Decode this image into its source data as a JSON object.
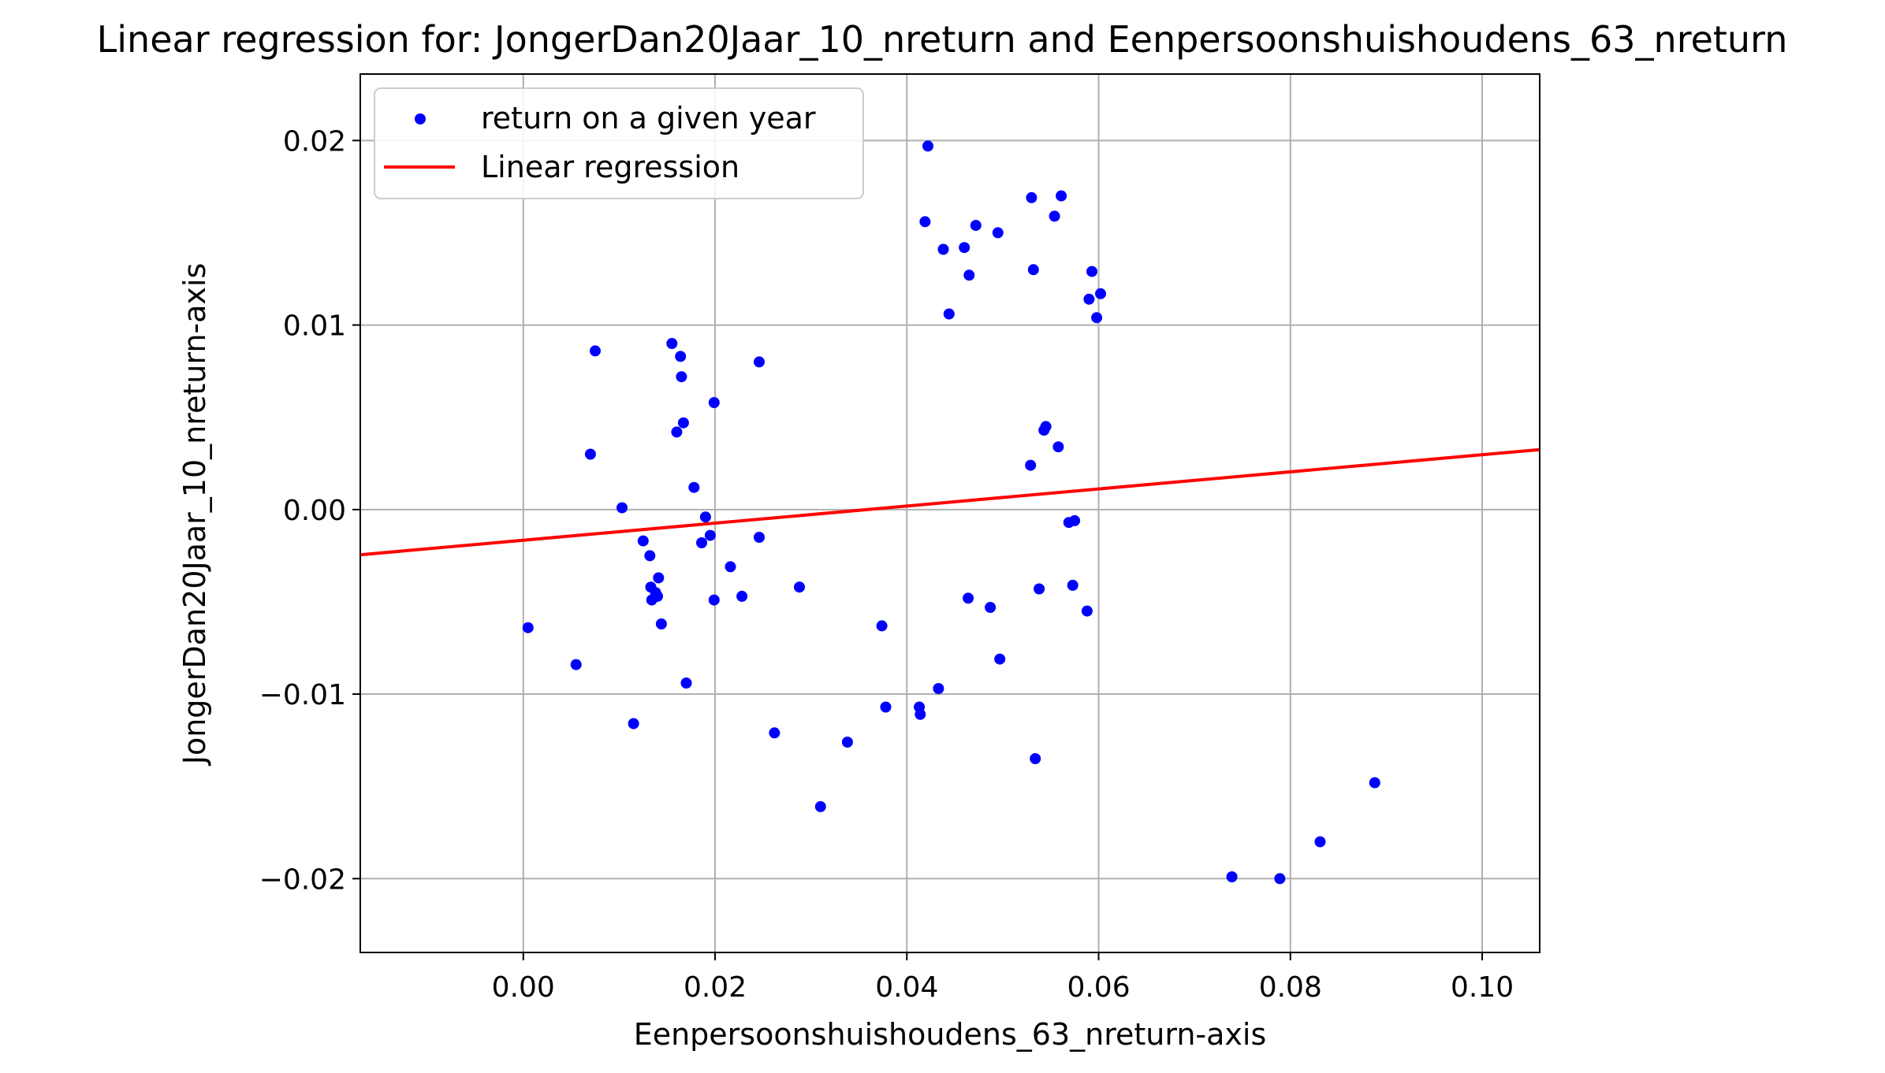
{
  "chart_data": {
    "type": "scatter",
    "title": "Linear regression for: JongerDan20Jaar_10_nreturn and Eenpersoonshuishoudens_63_nreturn",
    "xlabel": "Eenpersoonshuishoudens_63_nreturn-axis",
    "ylabel": "JongerDan20Jaar_10_nreturn-axis",
    "xlim": [
      -0.017,
      0.106
    ],
    "ylim": [
      -0.024,
      0.0236
    ],
    "xticks": [
      0.0,
      0.02,
      0.04,
      0.06,
      0.08,
      0.1
    ],
    "xtick_labels": [
      "0.00",
      "0.02",
      "0.04",
      "0.06",
      "0.08",
      "0.10"
    ],
    "yticks": [
      0.02,
      0.01,
      0.0,
      -0.01,
      -0.02
    ],
    "ytick_labels": [
      "0.02",
      "0.01",
      "0.00",
      "−0.01",
      "−0.02"
    ],
    "grid": true,
    "legend": {
      "position": "top-left",
      "entries": [
        {
          "label": "return on a given year",
          "kind": "marker",
          "color": "#0000ff"
        },
        {
          "label": "Linear regression",
          "kind": "line",
          "color": "#ff0000"
        }
      ]
    },
    "series": [
      {
        "name": "return on a given year",
        "kind": "scatter",
        "color": "#0000ff",
        "points": [
          [
            0.0005,
            -0.0064
          ],
          [
            0.0055,
            -0.0084
          ],
          [
            0.007,
            0.003
          ],
          [
            0.0075,
            0.0086
          ],
          [
            0.0103,
            0.0001
          ],
          [
            0.0115,
            -0.0116
          ],
          [
            0.0125,
            -0.0017
          ],
          [
            0.0132,
            -0.0025
          ],
          [
            0.0133,
            -0.0042
          ],
          [
            0.0134,
            -0.0049
          ],
          [
            0.0138,
            -0.0045
          ],
          [
            0.014,
            -0.0047
          ],
          [
            0.0141,
            -0.0037
          ],
          [
            0.0144,
            -0.0062
          ],
          [
            0.0155,
            0.009
          ],
          [
            0.016,
            0.0042
          ],
          [
            0.0164,
            0.0083
          ],
          [
            0.0165,
            0.0072
          ],
          [
            0.0167,
            0.0047
          ],
          [
            0.017,
            -0.0094
          ],
          [
            0.0178,
            0.0012
          ],
          [
            0.0186,
            -0.0018
          ],
          [
            0.019,
            -0.0004
          ],
          [
            0.0195,
            -0.0014
          ],
          [
            0.0199,
            0.0058
          ],
          [
            0.0199,
            -0.0049
          ],
          [
            0.0216,
            -0.0031
          ],
          [
            0.0228,
            -0.0047
          ],
          [
            0.0246,
            -0.0015
          ],
          [
            0.0246,
            0.008
          ],
          [
            0.0262,
            -0.0121
          ],
          [
            0.0288,
            -0.0042
          ],
          [
            0.031,
            -0.0161
          ],
          [
            0.0338,
            -0.0126
          ],
          [
            0.0374,
            -0.0063
          ],
          [
            0.0378,
            -0.0107
          ],
          [
            0.0413,
            -0.0107
          ],
          [
            0.0414,
            -0.0111
          ],
          [
            0.0419,
            0.0156
          ],
          [
            0.0422,
            0.0197
          ],
          [
            0.0433,
            -0.0097
          ],
          [
            0.0438,
            0.0141
          ],
          [
            0.0444,
            0.0106
          ],
          [
            0.046,
            0.0142
          ],
          [
            0.0464,
            -0.0048
          ],
          [
            0.0465,
            0.0127
          ],
          [
            0.0472,
            0.0154
          ],
          [
            0.0487,
            -0.0053
          ],
          [
            0.0495,
            0.015
          ],
          [
            0.0497,
            -0.0081
          ],
          [
            0.0529,
            0.0024
          ],
          [
            0.053,
            0.0169
          ],
          [
            0.0532,
            0.013
          ],
          [
            0.0534,
            -0.0135
          ],
          [
            0.0538,
            -0.0043
          ],
          [
            0.0543,
            0.0043
          ],
          [
            0.0545,
            0.0045
          ],
          [
            0.0554,
            0.0159
          ],
          [
            0.0558,
            0.0034
          ],
          [
            0.0561,
            0.017
          ],
          [
            0.0569,
            -0.0007
          ],
          [
            0.0573,
            -0.0041
          ],
          [
            0.0575,
            -0.0006
          ],
          [
            0.0588,
            -0.0055
          ],
          [
            0.059,
            0.0114
          ],
          [
            0.0593,
            0.0129
          ],
          [
            0.0598,
            0.0104
          ],
          [
            0.0602,
            0.0117
          ],
          [
            0.0739,
            -0.0199
          ],
          [
            0.0789,
            -0.02
          ],
          [
            0.0831,
            -0.018
          ],
          [
            0.0888,
            -0.0148
          ]
        ]
      },
      {
        "name": "Linear regression",
        "kind": "line",
        "color": "#ff0000",
        "points": [
          [
            -0.017,
            -0.00245
          ],
          [
            0.106,
            0.00325
          ]
        ]
      }
    ]
  }
}
